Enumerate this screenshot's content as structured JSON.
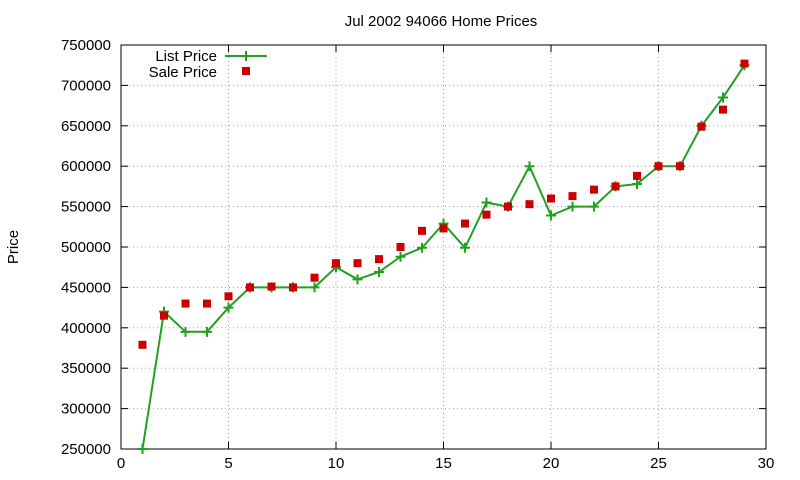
{
  "chart_data": {
    "type": "line",
    "title": "Jul 2002 94066 Home Prices",
    "xlabel": "",
    "ylabel": "Price",
    "xlim": [
      0,
      30
    ],
    "ylim": [
      250000,
      750000
    ],
    "xticks": [
      0,
      5,
      10,
      15,
      20,
      25,
      30
    ],
    "yticks": [
      250000,
      300000,
      350000,
      400000,
      450000,
      500000,
      550000,
      600000,
      650000,
      700000,
      750000
    ],
    "grid": true,
    "legend_position": "top-left",
    "series": [
      {
        "name": "List Price",
        "style": "line-with-plus-markers",
        "color": "#22a022",
        "x": [
          1,
          2,
          3,
          4,
          5,
          6,
          7,
          8,
          9,
          10,
          11,
          12,
          13,
          14,
          15,
          16,
          17,
          18,
          19,
          20,
          21,
          22,
          23,
          24,
          25,
          26,
          27,
          28,
          29
        ],
        "y": [
          250000,
          420000,
          395000,
          395000,
          425000,
          450000,
          450000,
          450000,
          450000,
          475000,
          460000,
          469000,
          488000,
          499000,
          529000,
          499000,
          555000,
          550000,
          600000,
          539000,
          550000,
          550000,
          575000,
          578000,
          600000,
          600000,
          650000,
          685000,
          725000
        ]
      },
      {
        "name": "Sale Price",
        "style": "square-points",
        "color": "#cc0000",
        "x": [
          1,
          2,
          3,
          4,
          5,
          6,
          7,
          8,
          9,
          10,
          11,
          12,
          13,
          14,
          15,
          16,
          17,
          18,
          19,
          20,
          21,
          22,
          23,
          24,
          25,
          26,
          27,
          28,
          29
        ],
        "y": [
          379000,
          415000,
          430000,
          430000,
          439000,
          450000,
          451000,
          450000,
          462000,
          480000,
          480000,
          485000,
          500000,
          520000,
          523000,
          529000,
          540000,
          550000,
          553000,
          560000,
          563000,
          571000,
          575000,
          588000,
          600000,
          600000,
          649000,
          670000,
          727000
        ]
      }
    ]
  }
}
